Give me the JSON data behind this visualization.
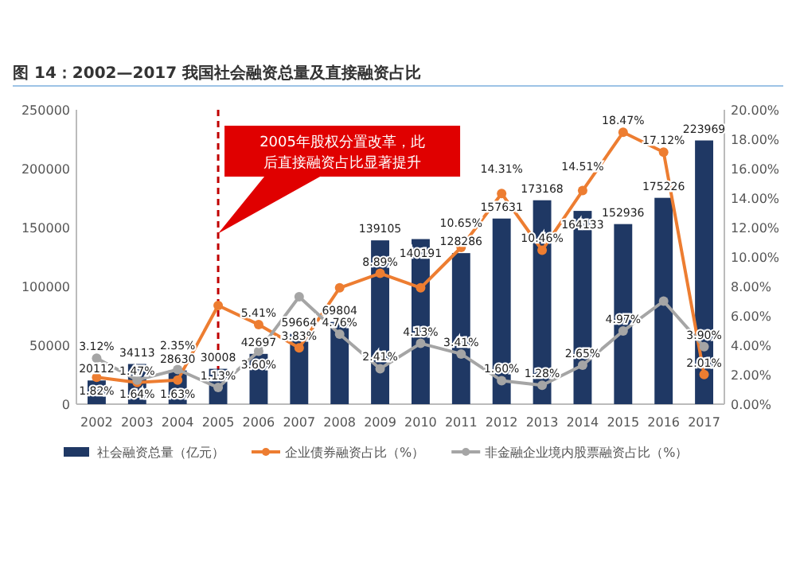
{
  "chart_data": {
    "type": "bar",
    "title": "图 14：2002—2017 我国社会融资总量及直接融资占比",
    "categories": [
      "2002",
      "2003",
      "2004",
      "2005",
      "2006",
      "2007",
      "2008",
      "2009",
      "2010",
      "2011",
      "2012",
      "2013",
      "2014",
      "2015",
      "2016",
      "2017"
    ],
    "series": [
      {
        "name": "社会融资总量（亿元）",
        "color": "#1f3864",
        "values": [
          20112,
          34113,
          28630,
          30008,
          42697,
          59664,
          69804,
          139105,
          140191,
          128286,
          157631,
          173168,
          164133,
          152936,
          175226,
          223969
        ],
        "value_labels": [
          "20112",
          "34113",
          "28630",
          "30008",
          "42697",
          "59664",
          "69804",
          "139105",
          "140191",
          "128286",
          "157631",
          "173168",
          "164133",
          "152936",
          "175226",
          "223969"
        ]
      },
      {
        "name": "企业债券融资占比（%）",
        "type": "line",
        "axis": "y2",
        "color": "#ed7d31",
        "marker": "circle",
        "values": [
          1.82,
          1.47,
          1.63,
          6.7,
          5.41,
          3.83,
          7.9,
          8.89,
          7.9,
          10.65,
          14.31,
          10.46,
          14.51,
          18.47,
          17.12,
          2.01
        ],
        "value_labels": [
          "1.82%",
          "1.47%",
          "1.63%",
          null,
          "5.41%",
          "3.83%",
          null,
          "8.89%",
          null,
          "10.65%",
          "14.31%",
          "10.46%",
          "14.51%",
          "18.47%",
          "17.12%",
          "2.01%"
        ]
      },
      {
        "name": "非金融企业境内股票融资占比（%）",
        "type": "line",
        "axis": "y2",
        "color": "#a5a5a5",
        "marker": "circle",
        "values": [
          3.12,
          1.64,
          2.35,
          1.13,
          3.6,
          7.3,
          4.76,
          2.41,
          4.13,
          3.41,
          1.6,
          1.28,
          2.65,
          4.97,
          7.0,
          3.9
        ],
        "value_labels": [
          "3.12%",
          "1.64%",
          "2.35%",
          "1.13%",
          "3.60%",
          null,
          "4.76%",
          "2.41%",
          "4.13%",
          "3.41%",
          "1.60%",
          "1.28%",
          "2.65%",
          "4.97%",
          null,
          "3.90%"
        ]
      }
    ],
    "ylim": [
      0,
      250000
    ],
    "yticks": [
      0,
      50000,
      100000,
      150000,
      200000,
      250000
    ],
    "y2lim": [
      0,
      20
    ],
    "y2ticks": [
      {
        "value": 0,
        "label": "0.00%"
      },
      {
        "value": 2,
        "label": "2.00%"
      },
      {
        "value": 4,
        "label": "4.00%"
      },
      {
        "value": 6,
        "label": "6.00%"
      },
      {
        "value": 8,
        "label": "8.00%"
      },
      {
        "value": 10,
        "label": "10.00%"
      },
      {
        "value": 12,
        "label": "12.00%"
      },
      {
        "value": 14,
        "label": "14.00%"
      },
      {
        "value": 16,
        "label": "16.00%"
      },
      {
        "value": 18,
        "label": "18.00%"
      },
      {
        "value": 20,
        "label": "20.00%"
      }
    ],
    "ref_lines": [
      {
        "axis": "x",
        "value": "2005",
        "color": "#c00000",
        "line_style": "dashed"
      }
    ],
    "annotations": [
      "2005年股权分置改革，此后直接融资占比显著提升"
    ],
    "legend": "bottom",
    "grid": false
  }
}
